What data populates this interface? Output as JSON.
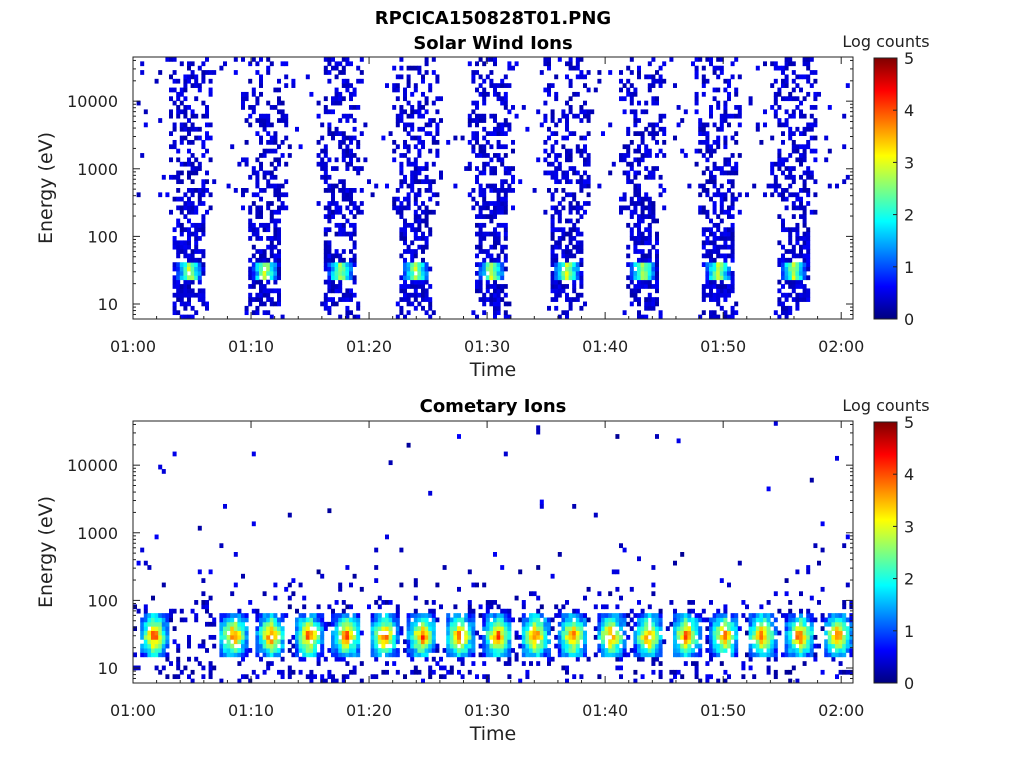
{
  "figure_title": "RPCICA150828T01.PNG",
  "colormap": [
    "#00007f",
    "#0000ff",
    "#007fff",
    "#00ffff",
    "#7fff7f",
    "#ffff00",
    "#ff7f00",
    "#ff0000",
    "#7f0000"
  ],
  "chart_data": [
    {
      "type": "heatmap",
      "title": "Solar Wind Ions",
      "xlabel": "Time",
      "ylabel": "Energy (eV)",
      "x_ticks": [
        "01:00",
        "01:10",
        "01:20",
        "01:30",
        "01:40",
        "01:50",
        "02:00"
      ],
      "x_range_minutes": [
        0,
        61
      ],
      "y_scale": "log",
      "y_ticks": [
        "10",
        "100",
        "1000",
        "10000"
      ],
      "y_range": [
        6,
        45000
      ],
      "colorbar_label": "Log counts",
      "colorbar_ticks": [
        "0",
        "1",
        "2",
        "3",
        "4",
        "5"
      ],
      "color_range": [
        0,
        5
      ],
      "sweep_centers_minutes": [
        4.8,
        11.2,
        17.6,
        24.0,
        30.4,
        36.8,
        43.2,
        49.6,
        56.0
      ],
      "peak_energy_eV": 32,
      "peak_log_counts": 2.6
    },
    {
      "type": "heatmap",
      "title": "Cometary Ions",
      "xlabel": "Time",
      "ylabel": "Energy (eV)",
      "x_ticks": [
        "01:00",
        "01:10",
        "01:20",
        "01:30",
        "01:40",
        "01:50",
        "02:00"
      ],
      "x_range_minutes": [
        0,
        61
      ],
      "y_scale": "log",
      "y_ticks": [
        "10",
        "100",
        "1000",
        "10000"
      ],
      "y_range": [
        6,
        45000
      ],
      "colorbar_label": "Log counts",
      "colorbar_ticks": [
        "0",
        "1",
        "2",
        "3",
        "4",
        "5"
      ],
      "color_range": [
        0,
        5
      ],
      "blob_centers_minutes": [
        1.8,
        8.5,
        11.7,
        14.9,
        18.1,
        21.3,
        24.5,
        27.7,
        30.9,
        34.1,
        37.3,
        40.5,
        43.7,
        46.9,
        50.1,
        53.3,
        56.5,
        59.7
      ],
      "peak_energy_eV": 30,
      "peak_log_counts": 3.9
    }
  ]
}
